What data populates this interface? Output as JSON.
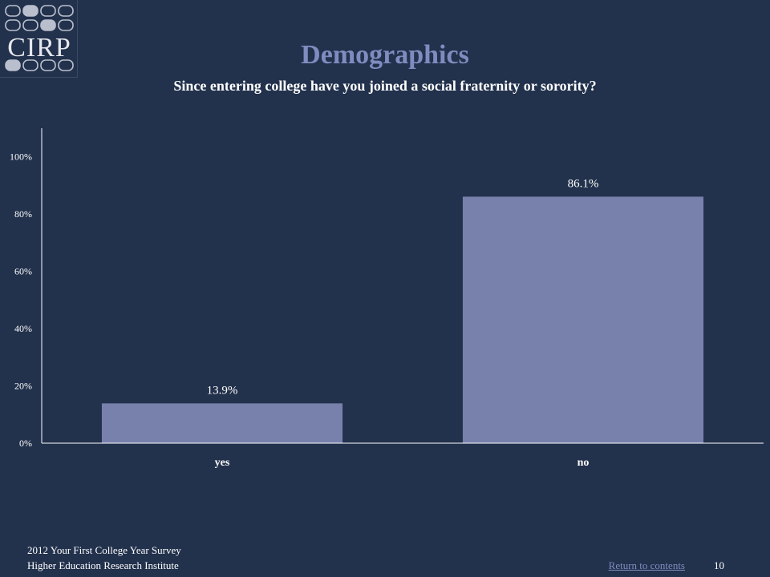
{
  "logo": {
    "text": "CIRP"
  },
  "header": {
    "title": "Demographics",
    "subtitle": "Since entering college have you joined a social fraternity or sorority?"
  },
  "chart_data": {
    "type": "bar",
    "categories": [
      "yes",
      "no"
    ],
    "values": [
      13.9,
      86.1
    ],
    "data_labels": [
      "13.9%",
      "86.1%"
    ],
    "yticks": [
      "0%",
      "20%",
      "40%",
      "60%",
      "80%",
      "100%"
    ],
    "ylim": [
      0,
      110
    ],
    "bar_color": "#7880ac",
    "grid": false,
    "legend": "none"
  },
  "footer": {
    "line1": "2012 Your First College Year Survey",
    "line2": "Higher Education Research Institute",
    "return_link": "Return to contents",
    "page_number": "10"
  }
}
